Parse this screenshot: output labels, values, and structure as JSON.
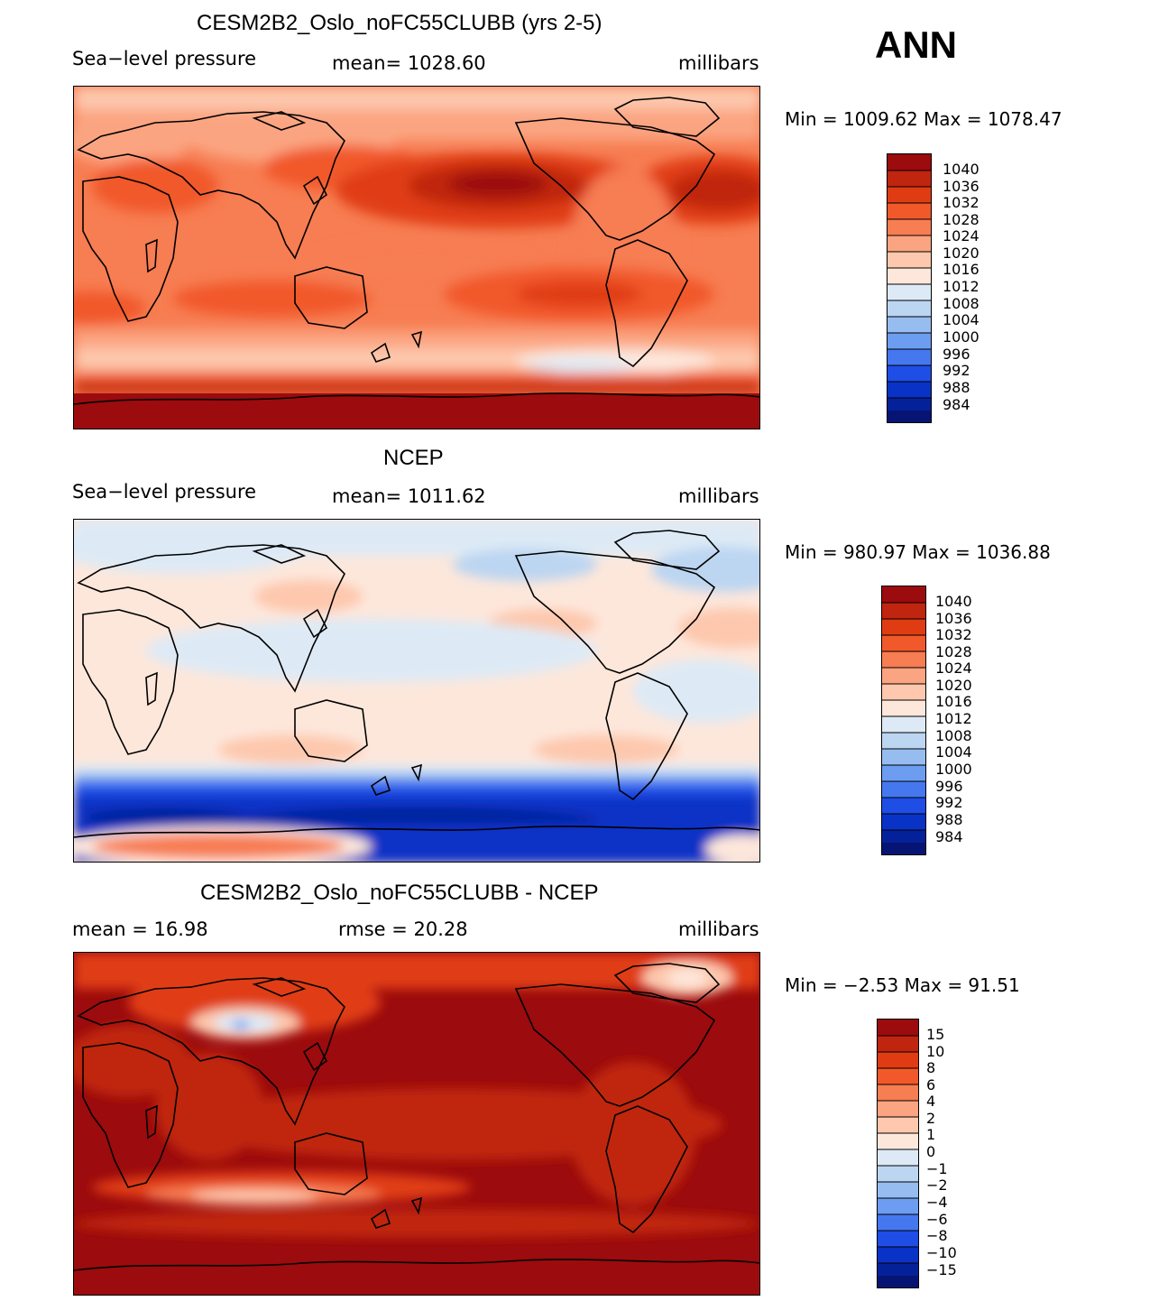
{
  "page_title": "ANN",
  "scale_colors": [
    "#9c0b0d",
    "#c0250f",
    "#e03c13",
    "#f1592a",
    "#f77d52",
    "#fba481",
    "#fdc8ad",
    "#fde7db",
    "#ddeaf6",
    "#bcd5f1",
    "#97bdf0",
    "#6d9df0",
    "#4578ef",
    "#1e4ee6",
    "#0933c6",
    "#05219a",
    "#061573"
  ],
  "chart_data": [
    {
      "type": "heatmap",
      "title": "CESM2B2_Oslo_noFC55CLUBB (yrs 2-5)",
      "left_label": "Sea−level pressure",
      "center_label": "mean=  1028.60",
      "units": "millibars",
      "stats": "Min  =  1009.62  Max  =  1078.47",
      "levels": [
        "1040",
        "1036",
        "1032",
        "1028",
        "1024",
        "1020",
        "1016",
        "1012",
        "1008",
        "1004",
        "1000",
        "996",
        "992",
        "988",
        "984"
      ]
    },
    {
      "type": "heatmap",
      "title": "NCEP",
      "left_label": "Sea−level pressure",
      "center_label": "mean=  1011.62",
      "units": "millibars",
      "stats": "Min  =  980.97  Max  =  1036.88",
      "levels": [
        "1040",
        "1036",
        "1032",
        "1028",
        "1024",
        "1020",
        "1016",
        "1012",
        "1008",
        "1004",
        "1000",
        "996",
        "992",
        "988",
        "984"
      ]
    },
    {
      "type": "heatmap",
      "title": "CESM2B2_Oslo_noFC55CLUBB - NCEP",
      "left_label": "mean  =    16.98",
      "center_label": "rmse  =    20.28",
      "units": "millibars",
      "stats": "Min  =    −2.53  Max  =    91.51",
      "levels": [
        "15",
        "10",
        "8",
        "6",
        "4",
        "2",
        "1",
        "0",
        "−1",
        "−2",
        "−4",
        "−6",
        "−8",
        "−10",
        "−15"
      ]
    }
  ]
}
